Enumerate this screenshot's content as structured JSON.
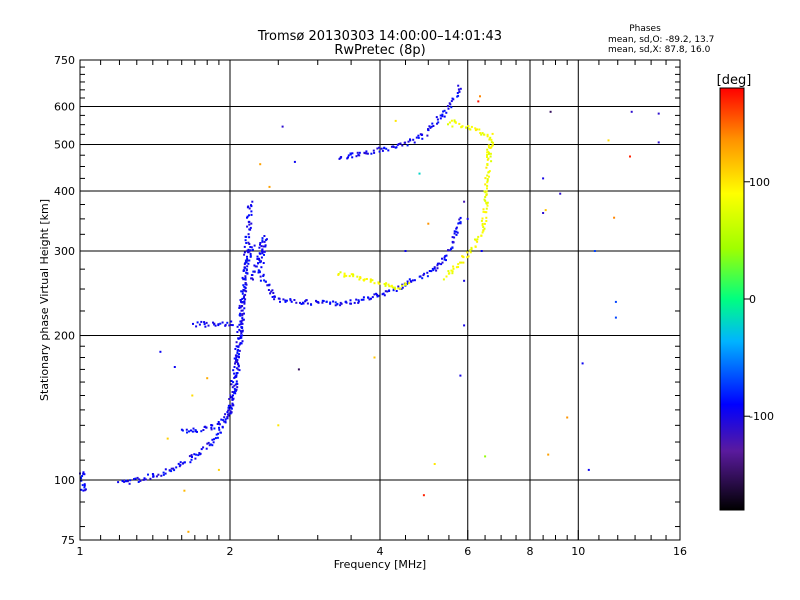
{
  "chart_data": {
    "type": "scatter",
    "title": "Tromsø 20130303 14:00:00–14:01:43",
    "subtitle": "RwPretec (8p)",
    "xlabel": "Frequency [MHz]",
    "ylabel": "Stationary phase Virtual Height [km]",
    "x_scale": "log",
    "y_scale": "log",
    "xlim": [
      1,
      16
    ],
    "ylim": [
      75,
      750
    ],
    "x_ticks": [
      1,
      2,
      4,
      6,
      8,
      10,
      16
    ],
    "x_tick_labels": [
      "1",
      "2",
      "4",
      "6",
      "8",
      "10",
      "16"
    ],
    "x_grid": [
      2,
      4,
      6,
      8,
      10
    ],
    "x_minor_ticks": [
      1.1,
      1.2,
      1.3,
      1.4,
      1.5,
      1.6,
      1.7,
      1.8,
      1.9,
      2.5,
      3,
      3.5,
      4.5,
      5,
      5.5,
      6.5,
      7,
      7.5,
      8.5,
      9,
      9.5,
      11,
      12,
      13,
      14,
      15
    ],
    "y_ticks": [
      75,
      100,
      200,
      300,
      400,
      500,
      600,
      750
    ],
    "y_tick_labels": [
      "75",
      "100",
      "200",
      "300",
      "400",
      "500",
      "600",
      "750"
    ],
    "y_grid": [
      100,
      200,
      300,
      400,
      500,
      600
    ],
    "y_minor_ticks": [
      80,
      90,
      110,
      120,
      130,
      140,
      150,
      160,
      170,
      180,
      190,
      225,
      250,
      275,
      325,
      350,
      375,
      425,
      450,
      475,
      525,
      550,
      575,
      625,
      650,
      675,
      700,
      725
    ],
    "stats": {
      "heading": "Phases",
      "line1": "mean, sd,O: -89.2, 13.7",
      "line2": "mean, sd,X:  87.8, 16.0"
    },
    "colorbar": {
      "label": "[deg]",
      "min": -180,
      "max": 180,
      "ticks": [
        100,
        0,
        -100
      ],
      "tick_labels": [
        "100",
        "0",
        "-100"
      ]
    },
    "grid": true,
    "legend": "none",
    "series": [
      {
        "traces": [
          {
            "phase": -95,
            "points": [
              [
                1.0,
                97
              ],
              [
                1.01,
                96
              ],
              [
                1.02,
                95
              ],
              [
                1.0,
                103
              ],
              [
                1.02,
                102
              ],
              [
                1.02,
                104
              ]
            ]
          },
          {
            "phase": -95,
            "points": [
              [
                1.2,
                100
              ],
              [
                1.25,
                99
              ],
              [
                1.3,
                100
              ],
              [
                1.35,
                101
              ],
              [
                1.4,
                102
              ],
              [
                1.45,
                103
              ],
              [
                1.5,
                105
              ],
              [
                1.55,
                106
              ],
              [
                1.6,
                108
              ],
              [
                1.65,
                110
              ],
              [
                1.7,
                112
              ],
              [
                1.75,
                114
              ],
              [
                1.8,
                117
              ],
              [
                1.85,
                121
              ],
              [
                1.9,
                126
              ],
              [
                1.95,
                132
              ],
              [
                2.0,
                140
              ],
              [
                2.03,
                150
              ],
              [
                2.06,
                165
              ],
              [
                2.08,
                180
              ],
              [
                2.1,
                200
              ],
              [
                2.12,
                230
              ],
              [
                2.14,
                260
              ],
              [
                2.16,
                300
              ],
              [
                2.18,
                340
              ],
              [
                2.2,
                380
              ]
            ]
          },
          {
            "phase": -95,
            "points": [
              [
                1.6,
                127
              ],
              [
                1.7,
                127
              ],
              [
                1.8,
                128
              ],
              [
                1.9,
                130
              ],
              [
                1.95,
                133
              ],
              [
                2.0,
                140
              ],
              [
                2.02,
                150
              ],
              [
                2.05,
                165
              ],
              [
                2.07,
                185
              ],
              [
                2.09,
                205
              ],
              [
                2.11,
                225
              ],
              [
                2.13,
                250
              ],
              [
                2.16,
                280
              ],
              [
                2.2,
                300
              ],
              [
                2.24,
                310
              ]
            ]
          },
          {
            "phase": -95,
            "points": [
              [
                1.7,
                211
              ],
              [
                1.8,
                211
              ],
              [
                1.9,
                212
              ],
              [
                2.0,
                212
              ],
              [
                2.05,
                212
              ]
            ]
          },
          {
            "phase": -95,
            "points": [
              [
                2.2,
                260
              ],
              [
                2.25,
                280
              ],
              [
                2.3,
                300
              ],
              [
                2.35,
                320
              ],
              [
                2.3,
                270
              ],
              [
                2.4,
                250
              ],
              [
                2.45,
                240
              ],
              [
                2.5,
                237
              ],
              [
                2.6,
                236
              ],
              [
                2.8,
                235
              ],
              [
                3.0,
                234
              ],
              [
                3.2,
                233
              ],
              [
                3.4,
                234
              ],
              [
                3.6,
                236
              ],
              [
                3.8,
                240
              ],
              [
                4.0,
                244
              ],
              [
                4.2,
                248
              ],
              [
                4.4,
                253
              ],
              [
                4.6,
                258
              ],
              [
                4.8,
                264
              ],
              [
                5.0,
                270
              ],
              [
                5.2,
                278
              ],
              [
                5.4,
                290
              ],
              [
                5.6,
                310
              ],
              [
                5.7,
                330
              ],
              [
                5.8,
                355
              ]
            ]
          },
          {
            "phase": -95,
            "points": [
              [
                3.3,
                470
              ],
              [
                3.5,
                475
              ],
              [
                3.7,
                480
              ],
              [
                3.9,
                485
              ],
              [
                4.1,
                490
              ],
              [
                4.3,
                495
              ],
              [
                4.5,
                500
              ],
              [
                4.7,
                510
              ],
              [
                4.9,
                525
              ],
              [
                5.1,
                545
              ],
              [
                5.3,
                570
              ],
              [
                5.5,
                600
              ],
              [
                5.7,
                635
              ],
              [
                5.8,
                660
              ]
            ]
          },
          {
            "phase": 85,
            "points": [
              [
                3.3,
                270
              ],
              [
                3.5,
                266
              ],
              [
                3.7,
                262
              ],
              [
                3.9,
                258
              ],
              [
                4.1,
                255
              ],
              [
                4.3,
                252
              ],
              [
                4.6,
                255
              ]
            ]
          },
          {
            "phase": 85,
            "points": [
              [
                5.4,
                265
              ],
              [
                5.6,
                275
              ],
              [
                5.8,
                285
              ],
              [
                6.0,
                295
              ],
              [
                6.2,
                310
              ],
              [
                6.4,
                330
              ],
              [
                6.5,
                360
              ],
              [
                6.55,
                400
              ],
              [
                6.6,
                450
              ],
              [
                6.65,
                500
              ]
            ]
          },
          {
            "phase": 85,
            "points": [
              [
                5.5,
                550
              ],
              [
                5.6,
                555
              ],
              [
                5.7,
                560
              ],
              [
                5.8,
                550
              ],
              [
                6.7,
                520
              ],
              [
                6.6,
                470
              ]
            ]
          }
        ]
      }
    ],
    "scatter_points": [
      {
        "x": 1.45,
        "y": 185,
        "phase": -95
      },
      {
        "x": 1.55,
        "y": 172,
        "phase": -95
      },
      {
        "x": 1.5,
        "y": 122,
        "phase": 110
      },
      {
        "x": 1.62,
        "y": 95,
        "phase": 120
      },
      {
        "x": 1.65,
        "y": 78,
        "phase": 125
      },
      {
        "x": 1.68,
        "y": 150,
        "phase": 105
      },
      {
        "x": 1.8,
        "y": 163,
        "phase": 125
      },
      {
        "x": 1.9,
        "y": 105,
        "phase": 110
      },
      {
        "x": 2.3,
        "y": 455,
        "phase": 130
      },
      {
        "x": 2.4,
        "y": 408,
        "phase": 130
      },
      {
        "x": 2.55,
        "y": 545,
        "phase": -110
      },
      {
        "x": 2.7,
        "y": 460,
        "phase": -95
      },
      {
        "x": 2.75,
        "y": 170,
        "phase": -150
      },
      {
        "x": 2.5,
        "y": 130,
        "phase": 100
      },
      {
        "x": 3.9,
        "y": 180,
        "phase": 115
      },
      {
        "x": 4.3,
        "y": 560,
        "phase": 100
      },
      {
        "x": 4.5,
        "y": 300,
        "phase": -95
      },
      {
        "x": 4.8,
        "y": 435,
        "phase": -20
      },
      {
        "x": 5.0,
        "y": 342,
        "phase": 135
      },
      {
        "x": 4.9,
        "y": 93,
        "phase": 170
      },
      {
        "x": 5.15,
        "y": 108,
        "phase": 100
      },
      {
        "x": 5.8,
        "y": 165,
        "phase": -100
      },
      {
        "x": 5.9,
        "y": 210,
        "phase": -100
      },
      {
        "x": 5.9,
        "y": 260,
        "phase": -100
      },
      {
        "x": 5.9,
        "y": 380,
        "phase": -120
      },
      {
        "x": 6.0,
        "y": 350,
        "phase": -100
      },
      {
        "x": 6.3,
        "y": 615,
        "phase": 175
      },
      {
        "x": 6.35,
        "y": 630,
        "phase": 140
      },
      {
        "x": 6.5,
        "y": 112,
        "phase": 40
      },
      {
        "x": 6.4,
        "y": 300,
        "phase": -95
      },
      {
        "x": 8.5,
        "y": 425,
        "phase": -100
      },
      {
        "x": 8.5,
        "y": 360,
        "phase": -110
      },
      {
        "x": 8.6,
        "y": 365,
        "phase": 115
      },
      {
        "x": 8.7,
        "y": 113,
        "phase": 130
      },
      {
        "x": 8.8,
        "y": 585,
        "phase": -150
      },
      {
        "x": 9.2,
        "y": 395,
        "phase": -110
      },
      {
        "x": 9.5,
        "y": 135,
        "phase": 135
      },
      {
        "x": 10.2,
        "y": 175,
        "phase": -95
      },
      {
        "x": 10.5,
        "y": 105,
        "phase": -95
      },
      {
        "x": 10.8,
        "y": 300,
        "phase": -70
      },
      {
        "x": 11.5,
        "y": 510,
        "phase": 105
      },
      {
        "x": 11.8,
        "y": 352,
        "phase": 140
      },
      {
        "x": 11.9,
        "y": 235,
        "phase": -70
      },
      {
        "x": 11.9,
        "y": 218,
        "phase": -70
      },
      {
        "x": 12.7,
        "y": 472,
        "phase": 170
      },
      {
        "x": 12.8,
        "y": 585,
        "phase": -110
      },
      {
        "x": 14.5,
        "y": 580,
        "phase": -110
      },
      {
        "x": 14.5,
        "y": 505,
        "phase": -110
      }
    ]
  }
}
